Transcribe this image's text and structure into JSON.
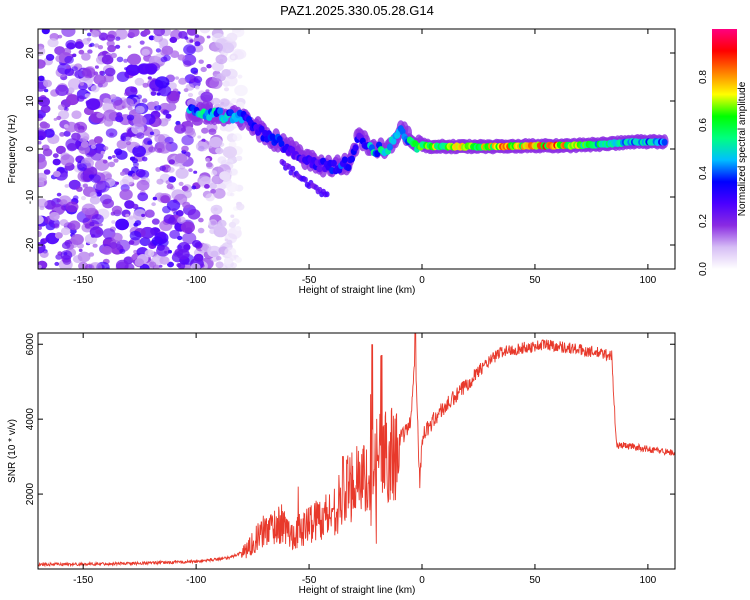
{
  "title": "PAZ1.2025.330.05.28.G14",
  "chart_data": [
    {
      "type": "heatmap",
      "name": "spectrogram",
      "xlabel": "Height of straight line (km)",
      "ylabel": "Frequency (Hz)",
      "xlim": [
        -170,
        112
      ],
      "ylim": [
        -25,
        25
      ],
      "xticks": [
        -150,
        -100,
        -50,
        0,
        50,
        100
      ],
      "xtick_labels": [
        "-150",
        "-100",
        "-50",
        "0",
        "50",
        "100"
      ],
      "yticks": [
        -20,
        -10,
        0,
        10,
        20
      ],
      "ytick_labels": [
        "-20",
        "-10",
        "0",
        "10",
        "20"
      ],
      "noise_region_x": [
        -170,
        -80
      ],
      "ridge": [
        {
          "x": -103,
          "f": 8.0,
          "amp": 0.45
        },
        {
          "x": -95,
          "f": 7.5,
          "amp": 0.55
        },
        {
          "x": -88,
          "f": 7.0,
          "amp": 0.5
        },
        {
          "x": -80,
          "f": 6.5,
          "amp": 0.45
        },
        {
          "x": -74,
          "f": 5.0,
          "amp": 0.35
        },
        {
          "x": -70,
          "f": 3.0,
          "amp": 0.4
        },
        {
          "x": -62,
          "f": 1.0,
          "amp": 0.35
        },
        {
          "x": -55,
          "f": -1.0,
          "amp": 0.3
        },
        {
          "x": -48,
          "f": -3.0,
          "amp": 0.3
        },
        {
          "x": -40,
          "f": -4.0,
          "amp": 0.35
        },
        {
          "x": -32,
          "f": -3.0,
          "amp": 0.4
        },
        {
          "x": -28,
          "f": 3.0,
          "amp": 0.3
        },
        {
          "x": -22,
          "f": 0.0,
          "amp": 0.5
        },
        {
          "x": -15,
          "f": 0.0,
          "amp": 0.55
        },
        {
          "x": -9,
          "f": 4.0,
          "amp": 0.4
        },
        {
          "x": -4,
          "f": 1.0,
          "amp": 0.6
        },
        {
          "x": 5,
          "f": 0.5,
          "amp": 0.7
        },
        {
          "x": 20,
          "f": 0.5,
          "amp": 0.75
        },
        {
          "x": 35,
          "f": 0.5,
          "amp": 0.8
        },
        {
          "x": 50,
          "f": 0.7,
          "amp": 0.85
        },
        {
          "x": 65,
          "f": 0.7,
          "amp": 0.8
        },
        {
          "x": 80,
          "f": 1.0,
          "amp": 0.55
        },
        {
          "x": 95,
          "f": 1.5,
          "amp": 0.5
        },
        {
          "x": 108,
          "f": 1.5,
          "amp": 0.45
        }
      ]
    },
    {
      "type": "colorbar",
      "name": "colorbar",
      "label": "Normalized spectral amplitude",
      "range": [
        0,
        1
      ],
      "ticks": [
        0,
        0.2,
        0.4,
        0.6,
        0.8
      ],
      "tick_labels": [
        "0.0",
        "0.2",
        "0.4",
        "0.6",
        "0.8"
      ],
      "colors": [
        "#ffffff",
        "#d6bdf5",
        "#8a2be2",
        "#4b00ff",
        "#0000ff",
        "#00bfff",
        "#00ff80",
        "#00ff00",
        "#ffff00",
        "#ff8000",
        "#ff0000",
        "#ff0080"
      ]
    },
    {
      "type": "line",
      "name": "snr",
      "xlabel": "Height of straight line (km)",
      "ylabel": "SNR (10 * v/v)",
      "xlim": [
        -170,
        112
      ],
      "ylim": [
        0,
        6300
      ],
      "xticks": [
        -150,
        -100,
        -50,
        0,
        50,
        100
      ],
      "xtick_labels": [
        "-150",
        "-100",
        "-50",
        "0",
        "50",
        "100"
      ],
      "yticks": [
        2000,
        4000,
        6000
      ],
      "ytick_labels": [
        "2000",
        "4000",
        "6000"
      ],
      "color": "#e8392b",
      "series": [
        {
          "name": "SNR",
          "x": [
            -170,
            -150,
            -120,
            -100,
            -85,
            -78,
            -72,
            -68,
            -62,
            -58,
            -52,
            -48,
            -44,
            -40,
            -36,
            -32,
            -28,
            -24,
            -22,
            -20,
            -18,
            -16,
            -12,
            -8,
            -5,
            -3,
            -1,
            0,
            3,
            8,
            15,
            25,
            35,
            45,
            55,
            65,
            75,
            84,
            86,
            90,
            100,
            112
          ],
          "y": [
            120,
            130,
            160,
            200,
            300,
            500,
            900,
            1100,
            1200,
            900,
            1100,
            1300,
            1400,
            1500,
            1800,
            2200,
            2600,
            2200,
            1800,
            3000,
            2800,
            3000,
            3300,
            3600,
            3900,
            5900,
            2200,
            3500,
            3800,
            4200,
            4600,
            5300,
            5800,
            5900,
            6000,
            5900,
            5800,
            5700,
            3300,
            3300,
            3200,
            3100
          ]
        }
      ],
      "spikes": [
        {
          "x": -22,
          "y": 6000
        },
        {
          "x": -18,
          "y": 5700
        },
        {
          "x": -3,
          "y": 6300
        },
        {
          "x": -55,
          "y": 2200
        },
        {
          "x": -35,
          "y": 3000
        }
      ]
    }
  ]
}
